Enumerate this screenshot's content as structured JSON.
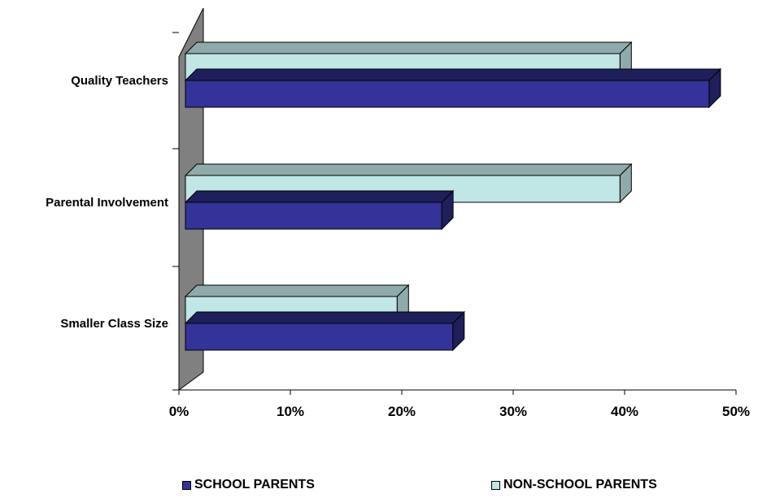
{
  "chart_data": {
    "type": "bar",
    "orientation": "horizontal",
    "style": "3d",
    "categories": [
      "Quality Teachers",
      "Parental Involvement",
      "Smaller Class Size"
    ],
    "series": [
      {
        "name": "SCHOOL PARENTS",
        "values": [
          47,
          23,
          24
        ],
        "color": "#333399"
      },
      {
        "name": "NON-SCHOOL PARENTS",
        "values": [
          39,
          39,
          19
        ],
        "color": "#c0e6e6"
      }
    ],
    "x_ticks": [
      "0%",
      "10%",
      "20%",
      "30%",
      "40%",
      "50%"
    ],
    "xlim": [
      0,
      50
    ],
    "unit": "%",
    "grid": false,
    "legend_position": "bottom",
    "colors": {
      "wall": "#808080",
      "school_top": "#1f1f5c",
      "nonschool_top": "#8faaaa",
      "outline": "#000000"
    }
  }
}
